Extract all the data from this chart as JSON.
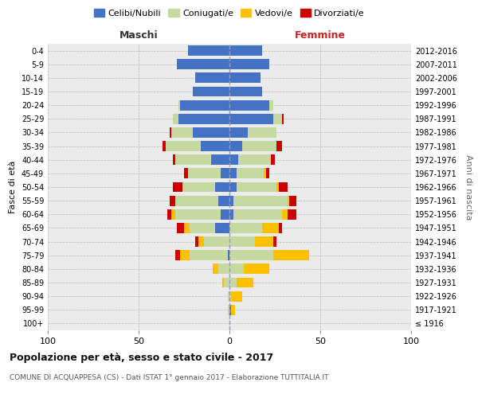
{
  "age_groups": [
    "100+",
    "95-99",
    "90-94",
    "85-89",
    "80-84",
    "75-79",
    "70-74",
    "65-69",
    "60-64",
    "55-59",
    "50-54",
    "45-49",
    "40-44",
    "35-39",
    "30-34",
    "25-29",
    "20-24",
    "15-19",
    "10-14",
    "5-9",
    "0-4"
  ],
  "birth_years": [
    "≤ 1916",
    "1917-1921",
    "1922-1926",
    "1927-1931",
    "1932-1936",
    "1937-1941",
    "1942-1946",
    "1947-1951",
    "1952-1956",
    "1957-1961",
    "1962-1966",
    "1967-1971",
    "1972-1976",
    "1977-1981",
    "1982-1986",
    "1987-1991",
    "1992-1996",
    "1997-2001",
    "2002-2006",
    "2007-2011",
    "2012-2016"
  ],
  "males": {
    "celibi": [
      0,
      0,
      0,
      0,
      0,
      1,
      0,
      8,
      5,
      6,
      8,
      5,
      10,
      16,
      20,
      28,
      27,
      20,
      19,
      29,
      23
    ],
    "coniugati": [
      0,
      1,
      1,
      3,
      6,
      21,
      14,
      14,
      25,
      24,
      18,
      18,
      20,
      19,
      12,
      3,
      1,
      0,
      0,
      0,
      0
    ],
    "vedovi": [
      0,
      0,
      0,
      1,
      3,
      5,
      3,
      3,
      2,
      0,
      0,
      0,
      0,
      0,
      0,
      0,
      0,
      0,
      0,
      0,
      0
    ],
    "divorziati": [
      0,
      0,
      0,
      0,
      0,
      3,
      2,
      4,
      2,
      3,
      5,
      2,
      1,
      2,
      1,
      0,
      0,
      0,
      0,
      0,
      0
    ]
  },
  "females": {
    "nubili": [
      0,
      1,
      0,
      0,
      0,
      0,
      0,
      0,
      2,
      2,
      4,
      4,
      5,
      7,
      10,
      24,
      22,
      18,
      17,
      22,
      18
    ],
    "coniugate": [
      0,
      0,
      1,
      4,
      8,
      24,
      14,
      18,
      27,
      30,
      22,
      15,
      18,
      19,
      16,
      5,
      2,
      0,
      0,
      0,
      0
    ],
    "vedove": [
      0,
      2,
      6,
      9,
      14,
      20,
      10,
      9,
      3,
      1,
      1,
      1,
      0,
      0,
      0,
      0,
      0,
      0,
      0,
      0,
      0
    ],
    "divorziate": [
      0,
      0,
      0,
      0,
      0,
      0,
      2,
      2,
      5,
      4,
      5,
      2,
      2,
      3,
      0,
      1,
      0,
      0,
      0,
      0,
      0
    ]
  },
  "colors": {
    "celibi_nubili": "#4472c4",
    "coniugati": "#c5d9a0",
    "vedovi": "#ffc000",
    "divorziati": "#cc0000"
  },
  "xlim": 100,
  "title": "Popolazione per età, sesso e stato civile - 2017",
  "subtitle": "COMUNE DI ACQUAPPESA (CS) - Dati ISTAT 1° gennaio 2017 - Elaborazione TUTTITALIA.IT",
  "ylabel_left": "Fasce di età",
  "ylabel_right": "Anni di nascita",
  "xlabel_left": "Maschi",
  "xlabel_right": "Femmine",
  "bg_color": "#ffffff",
  "plot_bg": "#ebebeb"
}
